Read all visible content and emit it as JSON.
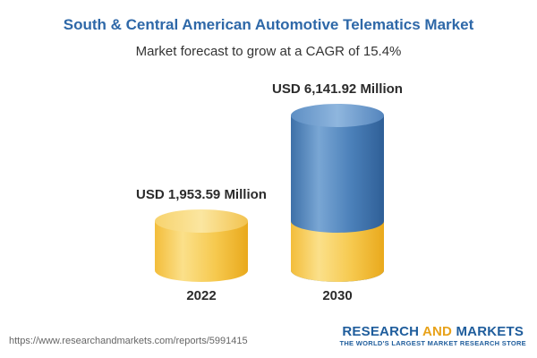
{
  "title": "South & Central American Automotive Telematics Market",
  "subtitle": "Market forecast to grow at a CAGR of 15.4%",
  "chart_data": {
    "type": "bar",
    "categories": [
      "2022",
      "2030"
    ],
    "values": [
      1953.59,
      6141.92
    ],
    "value_labels": [
      "USD 1,953.59 Million",
      "USD 6,141.92 Million"
    ],
    "unit": "USD Million",
    "title": "South & Central American Automotive Telematics Market",
    "subtitle": "Market forecast to grow at a CAGR of 15.4%",
    "cagr_percent": 15.4,
    "colors": {
      "base_bar": "#f5c54c",
      "growth_bar": "#4a80b8"
    }
  },
  "source_url": "https://www.researchandmarkets.com/reports/5991415",
  "brand": {
    "word1": "RESEARCH",
    "word2": "AND",
    "word3": "MARKETS",
    "tagline": "THE WORLD'S LARGEST MARKET RESEARCH STORE"
  }
}
